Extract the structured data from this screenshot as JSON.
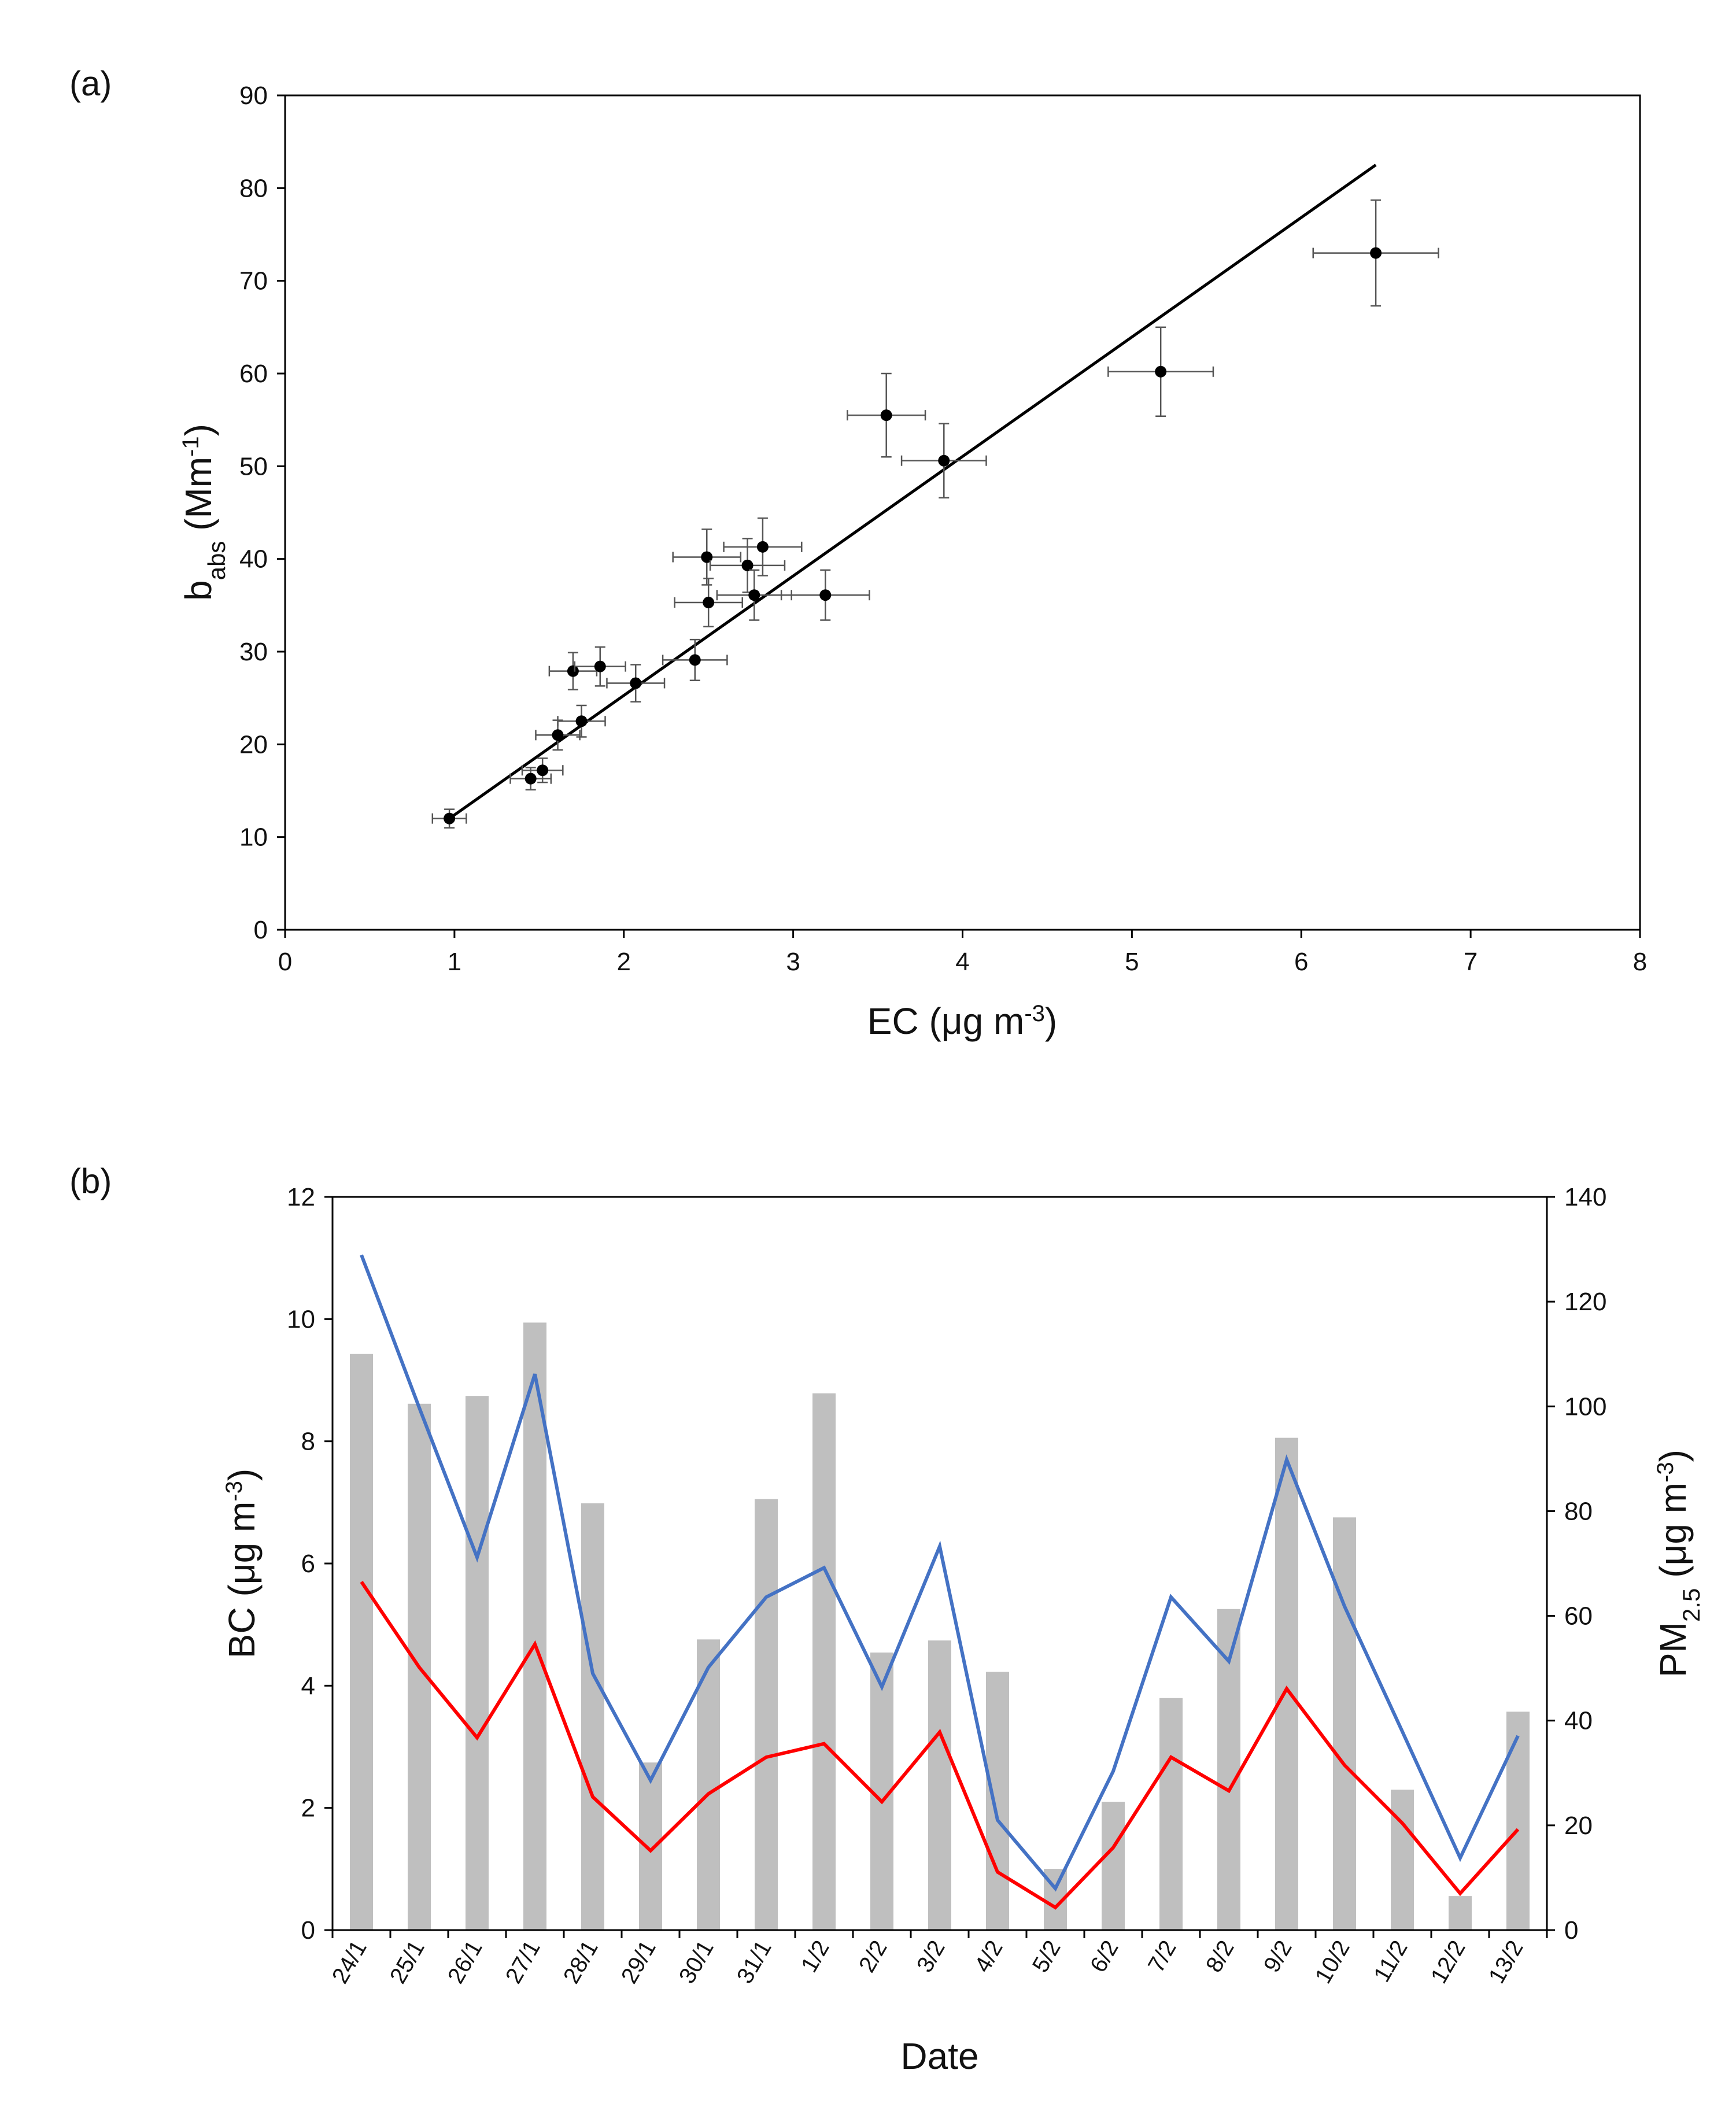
{
  "chart_data": [
    {
      "type": "scatter",
      "panel_label": "(a)",
      "ylabel_main": "b",
      "ylabel_sub": "abs",
      "ylabel_unit": " (Mm",
      "ylabel_unit_sup": "-1",
      "ylabel_close": ")",
      "xlabel_main": "EC (μg m",
      "xlabel_sup": "-3",
      "xlabel_close": ")",
      "xlim": [
        0,
        8
      ],
      "ylim": [
        0,
        90
      ],
      "x_ticks": [
        0,
        1,
        2,
        3,
        4,
        5,
        6,
        7,
        8
      ],
      "y_ticks": [
        0,
        10,
        20,
        30,
        40,
        50,
        60,
        70,
        80,
        90
      ],
      "points": [
        {
          "x": 0.97,
          "y": 12.0,
          "xerr": 0.1,
          "yerr": 1.0
        },
        {
          "x": 1.45,
          "y": 16.3,
          "xerr": 0.12,
          "yerr": 1.2
        },
        {
          "x": 1.52,
          "y": 17.2,
          "xerr": 0.12,
          "yerr": 1.3
        },
        {
          "x": 1.61,
          "y": 21.0,
          "xerr": 0.13,
          "yerr": 1.6
        },
        {
          "x": 1.75,
          "y": 22.5,
          "xerr": 0.14,
          "yerr": 1.7
        },
        {
          "x": 1.7,
          "y": 27.9,
          "xerr": 0.14,
          "yerr": 2.0
        },
        {
          "x": 1.86,
          "y": 28.4,
          "xerr": 0.15,
          "yerr": 2.1
        },
        {
          "x": 2.07,
          "y": 26.6,
          "xerr": 0.17,
          "yerr": 2.0
        },
        {
          "x": 2.42,
          "y": 29.1,
          "xerr": 0.19,
          "yerr": 2.2
        },
        {
          "x": 2.5,
          "y": 35.3,
          "xerr": 0.2,
          "yerr": 2.6
        },
        {
          "x": 2.49,
          "y": 40.2,
          "xerr": 0.2,
          "yerr": 3.0
        },
        {
          "x": 2.73,
          "y": 39.3,
          "xerr": 0.22,
          "yerr": 2.9
        },
        {
          "x": 2.77,
          "y": 36.1,
          "xerr": 0.22,
          "yerr": 2.7
        },
        {
          "x": 2.82,
          "y": 41.3,
          "xerr": 0.23,
          "yerr": 3.1
        },
        {
          "x": 3.19,
          "y": 36.1,
          "xerr": 0.26,
          "yerr": 2.7
        },
        {
          "x": 3.55,
          "y": 55.5,
          "xerr": 0.23,
          "yerr": 4.5
        },
        {
          "x": 3.89,
          "y": 50.6,
          "xerr": 0.25,
          "yerr": 4.0
        },
        {
          "x": 5.17,
          "y": 60.2,
          "xerr": 0.31,
          "yerr": 4.8
        },
        {
          "x": 6.44,
          "y": 73.0,
          "xerr": 0.37,
          "yerr": 5.7
        }
      ],
      "fit_line": {
        "x": [
          0.97,
          6.44
        ],
        "y": [
          12.0,
          82.5
        ]
      }
    },
    {
      "type": "bar+line",
      "panel_label": "(b)",
      "categories": [
        "24/1",
        "25/1",
        "26/1",
        "27/1",
        "28/1",
        "29/1",
        "30/1",
        "31/1",
        "1/2",
        "2/2",
        "3/2",
        "4/2",
        "5/2",
        "6/2",
        "7/2",
        "8/2",
        "9/2",
        "10/2",
        "11/2",
        "12/2",
        "13/2"
      ],
      "xlabel": "Date",
      "ylabel_left_main": "BC (μg m",
      "ylabel_left_sup": "-3",
      "ylabel_left_close": ")",
      "ylabel_right_main": "PM",
      "ylabel_right_sub": "2.5",
      "ylabel_right_unit": " (μg m",
      "ylabel_right_sup": "-3",
      "ylabel_right_close": ")",
      "ylim_left": [
        0,
        12
      ],
      "ylim_right": [
        0,
        140
      ],
      "y_ticks_left": [
        0,
        2,
        4,
        6,
        8,
        10,
        12
      ],
      "y_ticks_right": [
        0,
        20,
        40,
        60,
        80,
        100,
        120,
        140
      ],
      "series": [
        {
          "name": "PM2.5",
          "axis": "right",
          "kind": "bar",
          "color": "#bfbfbf",
          "values": [
            110,
            100.5,
            102,
            116,
            81.5,
            32,
            55.5,
            82.3,
            102.5,
            53,
            55.3,
            49.3,
            11.7,
            24.5,
            44.3,
            61.3,
            94,
            78.8,
            26.8,
            6.5,
            41.7
          ]
        },
        {
          "name": "BC (blue)",
          "axis": "left",
          "kind": "line",
          "color": "#4472c4",
          "values": [
            11.05,
            8.55,
            6.1,
            9.1,
            4.2,
            2.45,
            4.3,
            5.45,
            5.93,
            3.98,
            6.28,
            1.8,
            0.68,
            2.6,
            5.45,
            4.4,
            7.7,
            5.3,
            3.25,
            1.18,
            3.18
          ]
        },
        {
          "name": "BC (red)",
          "axis": "left",
          "kind": "line",
          "color": "#ff0000",
          "values": [
            5.7,
            4.3,
            3.15,
            4.68,
            2.18,
            1.3,
            2.23,
            2.83,
            3.05,
            2.1,
            3.24,
            0.95,
            0.37,
            1.35,
            2.83,
            2.28,
            3.95,
            2.7,
            1.75,
            0.6,
            1.65
          ]
        }
      ]
    }
  ]
}
